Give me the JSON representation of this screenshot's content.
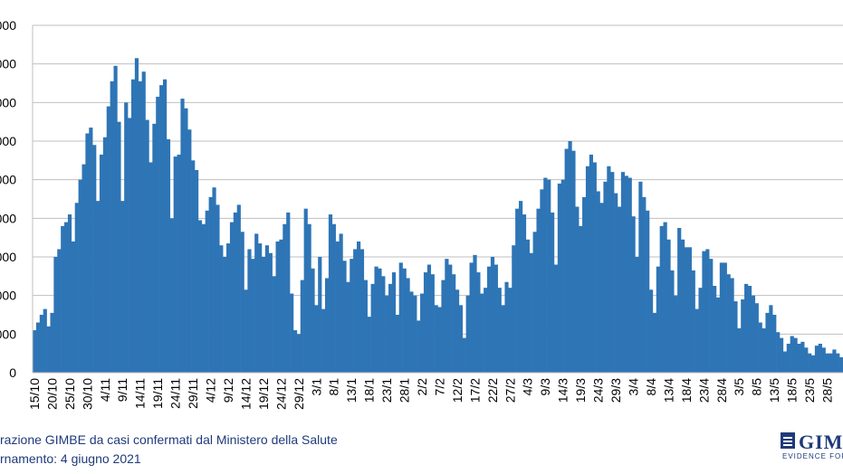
{
  "chart_data": {
    "type": "bar",
    "y_tick_labels": [
      "0",
      "000",
      "000",
      "000",
      "000",
      "000",
      "000",
      "000",
      "000",
      "000"
    ],
    "ylim": [
      0,
      9
    ],
    "grid": true,
    "bar_color": "#2e75b6",
    "x_tick_labels": [
      "15/10",
      "20/10",
      "25/10",
      "30/10",
      "4/11",
      "9/11",
      "14/11",
      "19/11",
      "24/11",
      "29/11",
      "4/12",
      "9/12",
      "14/12",
      "19/12",
      "24/12",
      "29/12",
      "3/1",
      "8/1",
      "13/1",
      "18/1",
      "23/1",
      "28/1",
      "2/2",
      "7/2",
      "12/2",
      "17/2",
      "22/2",
      "27/2",
      "4/3",
      "9/3",
      "14/3",
      "19/3",
      "24/3",
      "29/3",
      "3/4",
      "8/4",
      "13/4",
      "18/4",
      "23/4",
      "28/4",
      "3/5",
      "8/5",
      "13/5",
      "18/5",
      "23/5",
      "28/5"
    ],
    "values": [
      1.1,
      1.3,
      1.5,
      1.65,
      1.2,
      1.55,
      3.0,
      3.2,
      3.8,
      3.9,
      4.1,
      3.4,
      4.4,
      5.0,
      5.4,
      6.2,
      6.35,
      5.9,
      4.45,
      5.65,
      6.1,
      6.9,
      7.55,
      7.95,
      6.5,
      4.45,
      7.0,
      6.6,
      7.6,
      8.15,
      7.55,
      7.8,
      6.55,
      5.45,
      6.45,
      7.15,
      7.45,
      7.6,
      6.05,
      4.0,
      5.6,
      5.65,
      7.1,
      6.85,
      6.3,
      5.5,
      5.25,
      3.95,
      3.85,
      4.2,
      4.55,
      4.8,
      4.35,
      3.3,
      3.0,
      3.35,
      3.9,
      4.15,
      4.35,
      3.65,
      2.15,
      3.2,
      2.95,
      3.6,
      3.35,
      3.0,
      3.3,
      3.1,
      2.5,
      3.4,
      3.45,
      3.85,
      4.15,
      2.05,
      1.1,
      1.0,
      2.4,
      4.25,
      3.85,
      2.7,
      1.75,
      3.0,
      1.65,
      2.45,
      4.1,
      3.85,
      3.4,
      3.6,
      2.9,
      2.35,
      2.95,
      3.2,
      3.4,
      3.2,
      2.4,
      1.45,
      2.3,
      2.75,
      2.7,
      2.5,
      2.0,
      2.3,
      2.6,
      1.5,
      2.85,
      2.7,
      2.45,
      2.1,
      2.0,
      1.35,
      2.05,
      2.6,
      2.8,
      2.55,
      1.75,
      1.7,
      2.4,
      2.95,
      2.8,
      2.55,
      2.15,
      1.75,
      0.9,
      2.0,
      2.85,
      3.05,
      2.6,
      2.05,
      2.2,
      2.75,
      3.0,
      2.8,
      2.2,
      1.75,
      2.35,
      2.2,
      3.3,
      4.25,
      4.45,
      4.1,
      3.45,
      3.1,
      3.65,
      4.25,
      4.75,
      5.05,
      5.0,
      4.15,
      2.8,
      4.9,
      5.0,
      5.8,
      6.0,
      5.75,
      4.3,
      3.8,
      4.55,
      5.35,
      5.65,
      5.45,
      4.7,
      4.4,
      4.95,
      5.35,
      5.2,
      4.65,
      4.3,
      5.2,
      5.1,
      5.05,
      4.05,
      3.0,
      4.95,
      4.55,
      4.2,
      2.15,
      1.55,
      2.75,
      3.8,
      3.9,
      3.45,
      2.65,
      2.0,
      3.75,
      3.45,
      3.25,
      3.25,
      2.65,
      1.65,
      2.2,
      3.15,
      3.2,
      2.95,
      2.25,
      1.95,
      2.85,
      2.85,
      2.55,
      2.45,
      1.85,
      1.15,
      1.9,
      2.3,
      2.25,
      2.0,
      1.8,
      1.3,
      1.15,
      1.55,
      1.75,
      1.5,
      1.05,
      0.9,
      0.55,
      0.75,
      0.95,
      0.9,
      0.75,
      0.8,
      0.65,
      0.5,
      0.45,
      0.7,
      0.75,
      0.65,
      0.5,
      0.5,
      0.6,
      0.5,
      0.4
    ]
  },
  "footer": {
    "source": "razione GIMBE da casi confermati dal Ministero della Salute",
    "update": "rnamento: 4 giugno 2021"
  },
  "logo": {
    "word": "GIMB",
    "tagline": "EVIDENCE FOR H"
  }
}
